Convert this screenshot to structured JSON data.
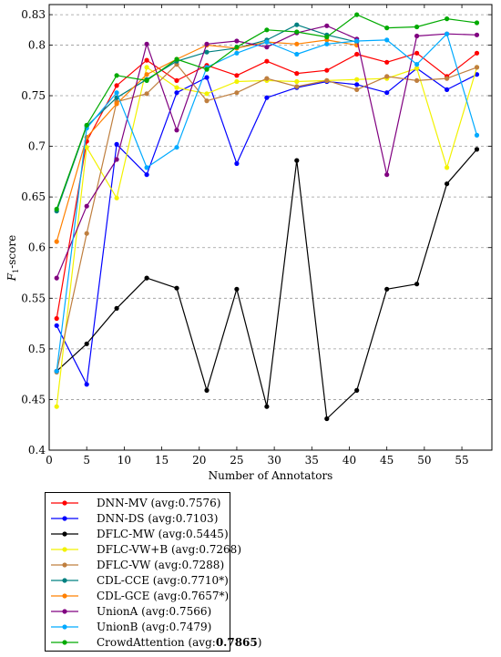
{
  "chart_data": {
    "type": "line",
    "xlabel": "Number of Annotators",
    "ylabel": "F",
    "ylabel_sub": "1",
    "ylabel_suffix": "-score",
    "xlim": [
      0,
      59
    ],
    "ylim": [
      0.4,
      0.84
    ],
    "xticks": [
      "0",
      "5",
      "10",
      "15",
      "20",
      "25",
      "30",
      "35",
      "40",
      "45",
      "50",
      "55"
    ],
    "yticks": [
      "0.4",
      "0.45",
      "0.5",
      "0.55",
      "0.6",
      "0.65",
      "0.7",
      "0.75",
      "0.8",
      "0.83"
    ],
    "grid": "y",
    "x": [
      1,
      5,
      9,
      13,
      17,
      21,
      25,
      29,
      33,
      37,
      41,
      45,
      49,
      53,
      57
    ],
    "series": [
      {
        "name": "DNN-MV",
        "avg_label": "(avg:0.7576)",
        "avg_bold": "",
        "avg_suffix": "",
        "color": "#ff0000",
        "values": [
          0.53,
          0.705,
          0.76,
          0.785,
          0.765,
          0.78,
          0.77,
          0.784,
          0.772,
          0.775,
          0.791,
          0.783,
          0.792,
          0.769,
          0.792
        ]
      },
      {
        "name": "DNN-DS",
        "avg_label": "(avg:0.7103)",
        "avg_bold": "",
        "avg_suffix": "",
        "color": "#0000ff",
        "values": [
          0.523,
          0.465,
          0.702,
          0.672,
          0.753,
          0.768,
          0.683,
          0.748,
          0.758,
          0.764,
          0.761,
          0.753,
          0.777,
          0.756,
          0.771
        ]
      },
      {
        "name": "DFLC-MW",
        "avg_label": "(avg:0.5445)",
        "avg_bold": "",
        "avg_suffix": "",
        "color": "#000000",
        "values": [
          0.478,
          0.505,
          0.54,
          0.57,
          0.56,
          0.459,
          0.559,
          0.443,
          0.686,
          0.431,
          0.459,
          0.559,
          0.564,
          0.663,
          0.697
        ]
      },
      {
        "name": "DFLC-VW+B",
        "avg_label": "(avg:0.7268)",
        "avg_bold": "",
        "avg_suffix": "",
        "color": "#f2f200",
        "values": [
          0.443,
          0.699,
          0.649,
          0.778,
          0.758,
          0.752,
          0.764,
          0.765,
          0.764,
          0.765,
          0.766,
          0.767,
          0.777,
          0.679,
          0.778
        ]
      },
      {
        "name": "DFLC-VW",
        "avg_label": "(avg:0.7288)",
        "avg_bold": "",
        "avg_suffix": "",
        "color": "#bf7f3f",
        "values": [
          0.477,
          0.614,
          0.744,
          0.752,
          0.781,
          0.745,
          0.753,
          0.767,
          0.759,
          0.765,
          0.756,
          0.769,
          0.765,
          0.767,
          0.778
        ]
      },
      {
        "name": "CDL-CCE",
        "avg_label": "(avg:0.7710",
        "avg_bold": "",
        "avg_suffix": "*)",
        "color": "#008080",
        "values": [
          0.636,
          0.72,
          0.748,
          0.766,
          0.784,
          0.793,
          0.797,
          0.805,
          0.82,
          0.81,
          0.803,
          null,
          null,
          null,
          null
        ]
      },
      {
        "name": "CDL-GCE",
        "avg_label": "(avg:0.7657",
        "avg_bold": "",
        "avg_suffix": "*)",
        "color": "#ff8000",
        "values": [
          0.606,
          0.709,
          0.742,
          0.771,
          0.786,
          0.8,
          0.797,
          0.803,
          0.801,
          0.805,
          0.8,
          null,
          null,
          null,
          null
        ]
      },
      {
        "name": "UnionA",
        "avg_label": "(avg:0.7566)",
        "avg_bold": "",
        "avg_suffix": "",
        "color": "#800080",
        "values": [
          0.57,
          0.641,
          0.687,
          0.801,
          0.716,
          0.801,
          0.804,
          0.798,
          0.812,
          0.819,
          0.806,
          0.672,
          0.809,
          0.811,
          0.81
        ]
      },
      {
        "name": "UnionB",
        "avg_label": "(avg:0.7479)",
        "avg_bold": "",
        "avg_suffix": "",
        "color": "#00aaff",
        "values": [
          0.478,
          0.718,
          0.753,
          0.679,
          0.699,
          0.778,
          0.792,
          0.803,
          0.791,
          0.801,
          0.804,
          0.805,
          0.781,
          0.811,
          0.711
        ]
      },
      {
        "name": "CrowdAttention",
        "avg_label": "(avg:",
        "avg_bold": "0.7865",
        "avg_suffix": ")",
        "color": "#00aa00",
        "values": [
          0.638,
          0.721,
          0.77,
          0.765,
          0.786,
          0.776,
          0.798,
          0.815,
          0.813,
          0.808,
          0.83,
          0.817,
          0.818,
          0.826,
          0.822
        ]
      }
    ]
  }
}
